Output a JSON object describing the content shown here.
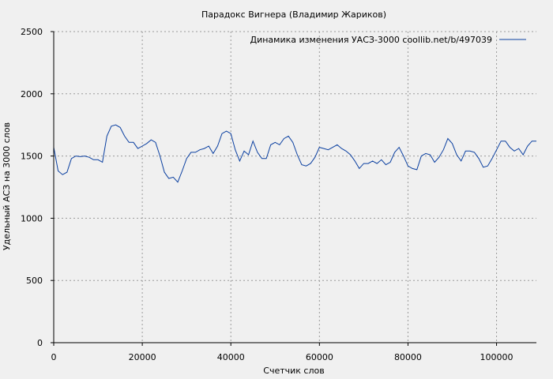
{
  "chart_data": {
    "type": "line",
    "title": "Парадокс Вигнера (Владимир Жариков)",
    "xlabel": "Счетчик слов",
    "ylabel": "Удельный АСЗ на 3000 слов",
    "xlim": [
      0,
      109000
    ],
    "ylim": [
      0,
      2500
    ],
    "xticks": [
      0,
      20000,
      40000,
      60000,
      80000,
      100000
    ],
    "yticks": [
      0,
      500,
      1000,
      1500,
      2000,
      2500
    ],
    "grid": true,
    "legend_position": "top-right",
    "series": [
      {
        "name": "Динамика изменения УАСЗ-3000  coollib.net/b/497039",
        "color": "#0a3fa0",
        "x": [
          0,
          1000,
          2000,
          3000,
          4000,
          5000,
          6000,
          7000,
          8000,
          9000,
          10000,
          11000,
          12000,
          13000,
          14000,
          15000,
          16000,
          17000,
          18000,
          19000,
          20000,
          21000,
          22000,
          23000,
          24000,
          25000,
          26000,
          27000,
          28000,
          29000,
          30000,
          31000,
          32000,
          33000,
          34000,
          35000,
          36000,
          37000,
          38000,
          39000,
          40000,
          41000,
          42000,
          43000,
          44000,
          45000,
          46000,
          47000,
          48000,
          49000,
          50000,
          51000,
          52000,
          53000,
          54000,
          55000,
          56000,
          57000,
          58000,
          59000,
          60000,
          61000,
          62000,
          63000,
          64000,
          65000,
          66000,
          67000,
          68000,
          69000,
          70000,
          71000,
          72000,
          73000,
          74000,
          75000,
          76000,
          77000,
          78000,
          79000,
          80000,
          81000,
          82000,
          83000,
          84000,
          85000,
          86000,
          87000,
          88000,
          89000,
          90000,
          91000,
          92000,
          93000,
          94000,
          95000,
          96000,
          97000,
          98000,
          99000,
          100000,
          101000,
          102000,
          103000,
          104000,
          105000,
          106000,
          107000,
          108000,
          109000
        ],
        "y": [
          1570,
          1380,
          1350,
          1370,
          1480,
          1500,
          1495,
          1500,
          1490,
          1470,
          1470,
          1450,
          1660,
          1740,
          1750,
          1730,
          1660,
          1610,
          1610,
          1560,
          1580,
          1600,
          1630,
          1610,
          1500,
          1370,
          1320,
          1330,
          1290,
          1380,
          1480,
          1530,
          1530,
          1550,
          1560,
          1580,
          1520,
          1580,
          1680,
          1700,
          1680,
          1550,
          1460,
          1540,
          1510,
          1620,
          1530,
          1480,
          1480,
          1590,
          1610,
          1590,
          1640,
          1660,
          1610,
          1510,
          1430,
          1420,
          1440,
          1490,
          1570,
          1560,
          1550,
          1570,
          1590,
          1560,
          1540,
          1510,
          1460,
          1400,
          1440,
          1440,
          1460,
          1440,
          1470,
          1430,
          1450,
          1530,
          1570,
          1500,
          1420,
          1400,
          1390,
          1500,
          1520,
          1510,
          1450,
          1490,
          1550,
          1640,
          1600,
          1510,
          1460,
          1540,
          1540,
          1530,
          1480,
          1410,
          1420,
          1480,
          1550,
          1620,
          1620,
          1570,
          1540,
          1560,
          1510,
          1580,
          1620,
          1620
        ]
      }
    ]
  }
}
